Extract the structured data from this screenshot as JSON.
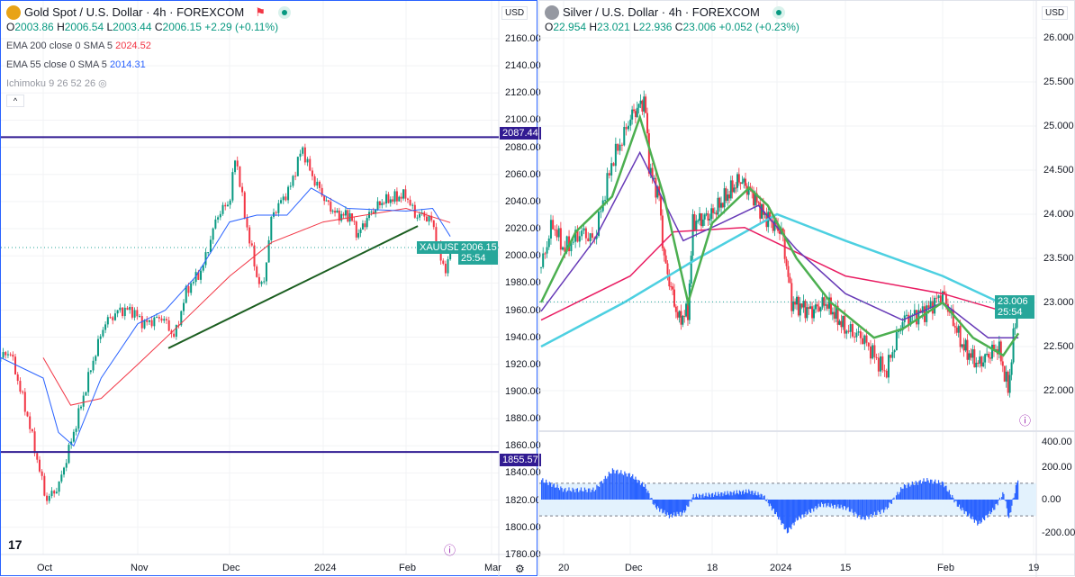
{
  "left": {
    "title": "Gold Spot / U.S. Dollar · 4h · FOREXCOM",
    "ohlc": {
      "o": "2003.86",
      "h": "2006.54",
      "l": "2003.44",
      "c": "2006.15",
      "chg": "+2.29 (+0.11%)"
    },
    "indicators": [
      {
        "label": "EMA 200 close 0 SMA 5",
        "value": "2024.52",
        "color": "#f23645"
      },
      {
        "label": "EMA 55 close 0 SMA 5",
        "value": "2014.31",
        "color": "#2962ff"
      },
      {
        "label": "Ichimoku 9 26 52 26",
        "value": ""
      }
    ],
    "currency": "USD",
    "symbol_tag": "XAUUSD",
    "price_tag": "2006.15",
    "countdown": "25:54",
    "hlines": [
      {
        "price": 2087.44,
        "label": "2087.44"
      },
      {
        "price": 1855.57,
        "label": "1855.57"
      }
    ],
    "price_ticks": [
      "2160.00",
      "2140.00",
      "2120.00",
      "2100.00",
      "2080.00",
      "2060.00",
      "2040.00",
      "2020.00",
      "2000.00",
      "1980.00",
      "1960.00",
      "1940.00",
      "1920.00",
      "1900.00",
      "1880.00",
      "1860.00",
      "1840.00",
      "1820.00",
      "1800.00",
      "1780.00"
    ],
    "time_ticks": [
      "Oct",
      "Nov",
      "Dec",
      "2024",
      "Feb",
      "Mar"
    ],
    "colors": {
      "line": "#311b92",
      "trend": "#1b5e20",
      "up": "#089981",
      "down": "#f23645"
    }
  },
  "right": {
    "title": "Silver / U.S. Dollar · 4h · FOREXCOM",
    "ohlc": {
      "o": "22.954",
      "h": "23.021",
      "l": "22.936",
      "c": "23.006",
      "chg": "+0.052 (+0.23%)"
    },
    "currency": "USD",
    "price_tag": "23.006",
    "countdown": "25:54",
    "price_ticks": [
      "26.000",
      "25.500",
      "25.000",
      "24.500",
      "24.000",
      "23.500",
      "23.000",
      "22.500",
      "22.000"
    ],
    "osc_ticks": [
      "400.00",
      "200.00",
      "0.00",
      "-200.00"
    ],
    "time_ticks": [
      "20",
      "Dec",
      "18",
      "2024",
      "15",
      "Feb",
      "19"
    ]
  },
  "chart_data": [
    {
      "type": "candlestick",
      "symbol": "XAUUSD",
      "ylim": [
        1780,
        2160
      ],
      "close": [
        [
          "2023-09-17",
          1925
        ],
        [
          "2023-09-20",
          1930
        ],
        [
          "2023-09-26",
          1880
        ],
        [
          "2023-10-02",
          1820
        ],
        [
          "2023-10-06",
          1830
        ],
        [
          "2023-10-11",
          1870
        ],
        [
          "2023-10-17",
          1920
        ],
        [
          "2023-10-21",
          1950
        ],
        [
          "2023-10-26",
          1960
        ],
        [
          "2023-10-30",
          1960
        ],
        [
          "2023-11-03",
          1950
        ],
        [
          "2023-11-09",
          1955
        ],
        [
          "2023-11-13",
          1940
        ],
        [
          "2023-11-17",
          1975
        ],
        [
          "2023-11-22",
          1990
        ],
        [
          "2023-11-27",
          2030
        ],
        [
          "2023-12-01",
          2040
        ],
        [
          "2023-12-03",
          2075
        ],
        [
          "2023-12-06",
          2030
        ],
        [
          "2023-12-10",
          1985
        ],
        [
          "2023-12-12",
          1975
        ],
        [
          "2023-12-15",
          2030
        ],
        [
          "2023-12-21",
          2050
        ],
        [
          "2023-12-25",
          2080
        ],
        [
          "2023-12-28",
          2060
        ],
        [
          "2024-01-02",
          2040
        ],
        [
          "2024-01-06",
          2030
        ],
        [
          "2024-01-11",
          2030
        ],
        [
          "2024-01-14",
          2015
        ],
        [
          "2024-01-18",
          2030
        ],
        [
          "2024-01-23",
          2040
        ],
        [
          "2024-02-01",
          2045
        ],
        [
          "2024-02-04",
          2030
        ],
        [
          "2024-02-07",
          2030
        ],
        [
          "2024-02-10",
          2025
        ],
        [
          "2024-02-13",
          1995
        ],
        [
          "2024-02-15",
          1990
        ],
        [
          "2024-02-16",
          2006.15
        ]
      ],
      "ema55": [
        [
          "2023-09-17",
          1925
        ],
        [
          "2023-10-01",
          1910
        ],
        [
          "2023-10-06",
          1870
        ],
        [
          "2023-10-11",
          1860
        ],
        [
          "2023-10-20",
          1910
        ],
        [
          "2023-11-01",
          1950
        ],
        [
          "2023-11-10",
          1960
        ],
        [
          "2023-11-20",
          1985
        ],
        [
          "2023-12-01",
          2025
        ],
        [
          "2023-12-10",
          2030
        ],
        [
          "2023-12-20",
          2030
        ],
        [
          "2023-12-28",
          2050
        ],
        [
          "2024-01-10",
          2035
        ],
        [
          "2024-02-01",
          2033
        ],
        [
          "2024-02-10",
          2035
        ],
        [
          "2024-02-16",
          2014.31
        ]
      ],
      "ema200": [
        [
          "2023-10-01",
          1925
        ],
        [
          "2023-10-10",
          1890
        ],
        [
          "2023-10-20",
          1895
        ],
        [
          "2023-11-01",
          1920
        ],
        [
          "2023-11-15",
          1950
        ],
        [
          "2023-12-01",
          1985
        ],
        [
          "2023-12-15",
          2010
        ],
        [
          "2024-01-01",
          2025
        ],
        [
          "2024-02-01",
          2035
        ],
        [
          "2024-02-16",
          2024.52
        ]
      ],
      "trendline": [
        [
          "2023-11-11",
          1932
        ],
        [
          "2024-02-05",
          2022
        ]
      ]
    },
    {
      "type": "candlestick",
      "symbol": "XAGUSD",
      "ylim": [
        21.6,
        26.4
      ],
      "close": [
        [
          "2023-11-16",
          23.4
        ],
        [
          "2023-11-18",
          23.9
        ],
        [
          "2023-11-20",
          23.6
        ],
        [
          "2023-11-23",
          23.8
        ],
        [
          "2023-11-25",
          23.7
        ],
        [
          "2023-11-27",
          24.3
        ],
        [
          "2023-11-28",
          24.6
        ],
        [
          "2023-11-30",
          24.9
        ],
        [
          "2023-12-01",
          25.1
        ],
        [
          "2023-12-04",
          25.3
        ],
        [
          "2023-12-05",
          24.5
        ],
        [
          "2023-12-07",
          24.2
        ],
        [
          "2023-12-08",
          23.5
        ],
        [
          "2023-12-11",
          22.8
        ],
        [
          "2023-12-13",
          22.9
        ],
        [
          "2023-12-14",
          23.9
        ],
        [
          "2023-12-18",
          24.0
        ],
        [
          "2023-12-21",
          24.2
        ],
        [
          "2023-12-24",
          24.4
        ],
        [
          "2023-12-27",
          24.2
        ],
        [
          "2023-12-29",
          24.0
        ],
        [
          "2024-01-02",
          23.8
        ],
        [
          "2024-01-04",
          23.0
        ],
        [
          "2024-01-08",
          22.9
        ],
        [
          "2024-01-11",
          23.0
        ],
        [
          "2024-01-15",
          22.7
        ],
        [
          "2024-01-18",
          22.6
        ],
        [
          "2024-01-22",
          22.2
        ],
        [
          "2024-01-25",
          22.8
        ],
        [
          "2024-01-29",
          22.9
        ],
        [
          "2024-02-01",
          23.1
        ],
        [
          "2024-02-05",
          22.5
        ],
        [
          "2024-02-08",
          22.3
        ],
        [
          "2024-02-12",
          22.5
        ],
        [
          "2024-02-14",
          22.0
        ],
        [
          "2024-02-15",
          22.6
        ],
        [
          "2024-02-16",
          23.006
        ]
      ],
      "ma_green": [
        [
          "2023-11-16",
          23.0
        ],
        [
          "2023-11-22",
          23.8
        ],
        [
          "2023-11-28",
          24.2
        ],
        [
          "2023-12-03",
          25.1
        ],
        [
          "2023-12-08",
          24.2
        ],
        [
          "2023-12-13",
          23.0
        ],
        [
          "2023-12-18",
          23.9
        ],
        [
          "2023-12-26",
          24.3
        ],
        [
          "2023-12-30",
          24.1
        ],
        [
          "2024-01-05",
          23.5
        ],
        [
          "2024-01-12",
          23.0
        ],
        [
          "2024-01-20",
          22.6
        ],
        [
          "2024-01-25",
          22.7
        ],
        [
          "2024-02-01",
          23.0
        ],
        [
          "2024-02-07",
          22.6
        ],
        [
          "2024-02-13",
          22.4
        ],
        [
          "2024-02-16",
          22.65
        ]
      ],
      "ma_purple": [
        [
          "2023-11-16",
          22.9
        ],
        [
          "2023-11-25",
          23.7
        ],
        [
          "2023-12-03",
          24.7
        ],
        [
          "2023-12-12",
          23.7
        ],
        [
          "2023-12-20",
          23.9
        ],
        [
          "2023-12-28",
          24.1
        ],
        [
          "2024-01-05",
          23.6
        ],
        [
          "2024-01-15",
          23.1
        ],
        [
          "2024-01-25",
          22.8
        ],
        [
          "2024-02-01",
          23.0
        ],
        [
          "2024-02-10",
          22.6
        ],
        [
          "2024-02-16",
          22.6
        ]
      ],
      "ma_red": [
        [
          "2023-11-16",
          22.8
        ],
        [
          "2023-12-01",
          23.3
        ],
        [
          "2023-12-10",
          23.8
        ],
        [
          "2023-12-25",
          23.85
        ],
        [
          "2024-01-15",
          23.3
        ],
        [
          "2024-02-01",
          23.1
        ],
        [
          "2024-02-16",
          22.85
        ]
      ],
      "ma_cyan": [
        [
          "2023-11-16",
          22.5
        ],
        [
          "2023-11-30",
          23.0
        ],
        [
          "2023-12-15",
          23.5
        ],
        [
          "2024-01-01",
          24.0
        ],
        [
          "2024-01-15",
          23.7
        ],
        [
          "2024-02-01",
          23.3
        ],
        [
          "2024-02-16",
          22.9
        ]
      ],
      "oscillator": {
        "ylim": [
          -300,
          400
        ],
        "bands": [
          100,
          -100
        ],
        "values": [
          [
            "2023-11-16",
            120
          ],
          [
            "2023-11-20",
            60
          ],
          [
            "2023-11-25",
            60
          ],
          [
            "2023-11-28",
            180
          ],
          [
            "2023-12-01",
            150
          ],
          [
            "2023-12-04",
            80
          ],
          [
            "2023-12-06",
            -40
          ],
          [
            "2023-12-09",
            -100
          ],
          [
            "2023-12-12",
            -80
          ],
          [
            "2023-12-14",
            20
          ],
          [
            "2023-12-18",
            30
          ],
          [
            "2023-12-22",
            40
          ],
          [
            "2023-12-26",
            50
          ],
          [
            "2023-12-29",
            20
          ],
          [
            "2024-01-01",
            -100
          ],
          [
            "2024-01-03",
            -200
          ],
          [
            "2024-01-05",
            -120
          ],
          [
            "2024-01-10",
            -30
          ],
          [
            "2024-01-15",
            -50
          ],
          [
            "2024-01-18",
            -120
          ],
          [
            "2024-01-22",
            -60
          ],
          [
            "2024-01-25",
            80
          ],
          [
            "2024-01-29",
            120
          ],
          [
            "2024-02-01",
            100
          ],
          [
            "2024-02-04",
            -40
          ],
          [
            "2024-02-08",
            -150
          ],
          [
            "2024-02-11",
            -60
          ],
          [
            "2024-02-13",
            40
          ],
          [
            "2024-02-14",
            -120
          ],
          [
            "2024-02-16",
            160
          ]
        ]
      }
    }
  ]
}
